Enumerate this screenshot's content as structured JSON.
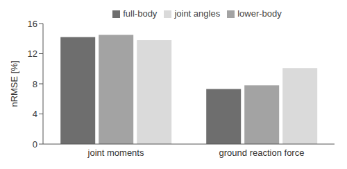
{
  "chart_data": {
    "type": "bar",
    "categories": [
      "joint moments",
      "ground reaction force"
    ],
    "series": [
      {
        "name": "full-body",
        "color": "#6e6e6e",
        "values": [
          14.2,
          7.3
        ]
      },
      {
        "name": "lower-body",
        "color": "#a3a3a3",
        "values": [
          14.5,
          7.8
        ]
      },
      {
        "name": "joint angles",
        "color": "#dadada",
        "values": [
          13.8,
          10.1
        ]
      }
    ],
    "y_label": "nRMSE [%]",
    "ylim": [
      0,
      16
    ],
    "yticks": [
      0,
      4,
      8,
      12,
      16
    ],
    "grid": false,
    "legend": "top"
  }
}
